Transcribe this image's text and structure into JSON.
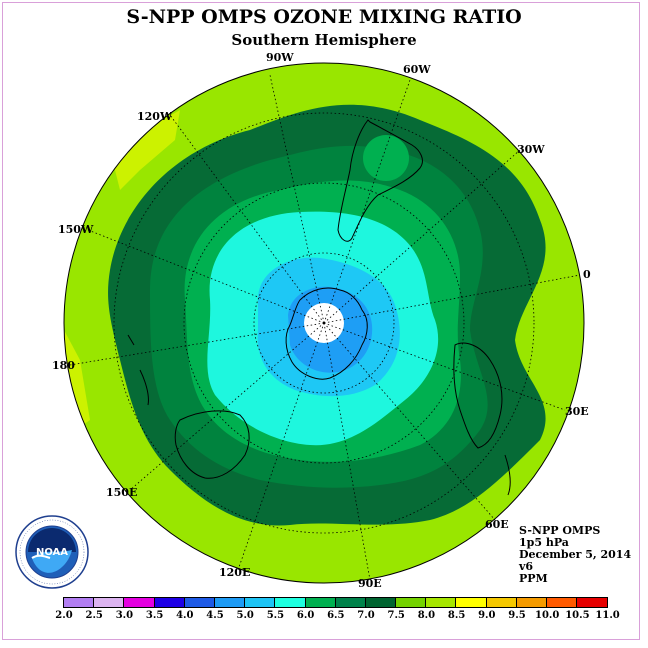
{
  "title": "S-NPP OMPS OZONE MIXING RATIO",
  "subtitle": "Southern Hemisphere",
  "longitude_labels": [
    "90W",
    "60W",
    "30W",
    "0",
    "30E",
    "60E",
    "90E",
    "120E",
    "150E",
    "180",
    "150W",
    "120W"
  ],
  "info": {
    "instrument": "S-NPP OMPS",
    "level": "1p5 hPa",
    "date": "December 5, 2014",
    "version": "v6",
    "units": "PPM"
  },
  "logo": {
    "text": "NOAA",
    "ring_text": "NATIONAL OCEANIC AND ATMOSPHERIC ADMINISTRATION · U.S. DEPARTMENT OF COMMERCE"
  },
  "colorbar": {
    "ticks": [
      "2.0",
      "2.5",
      "3.0",
      "3.5",
      "4.0",
      "4.5",
      "5.0",
      "5.5",
      "6.0",
      "6.5",
      "7.0",
      "7.5",
      "8.0",
      "8.5",
      "9.0",
      "9.5",
      "10.0",
      "10.5",
      "11.0"
    ],
    "colors": [
      "#b27ef2",
      "#dcb4f0",
      "#e400e0",
      "#1e00e6",
      "#1e5ae6",
      "#1e9bf5",
      "#1ec4f5",
      "#1effe0",
      "#00b050",
      "#00824a",
      "#006430",
      "#74d200",
      "#a6e600",
      "#ffff00",
      "#f5c800",
      "#f59b00",
      "#ff5a00",
      "#e60000",
      "#8c5028"
    ]
  },
  "map": {
    "contour_colors": {
      "outer_7_5": "#99e600",
      "outer_8_0": "#ccf200",
      "band_7_0": "#066b36",
      "band_6_5": "#00833e",
      "band_6_0": "#00b050",
      "band_5_5": "#1ef7de",
      "band_5_0": "#1ec8f5",
      "band_4_5": "#1e9ef5",
      "pole": "#ffffff"
    }
  }
}
